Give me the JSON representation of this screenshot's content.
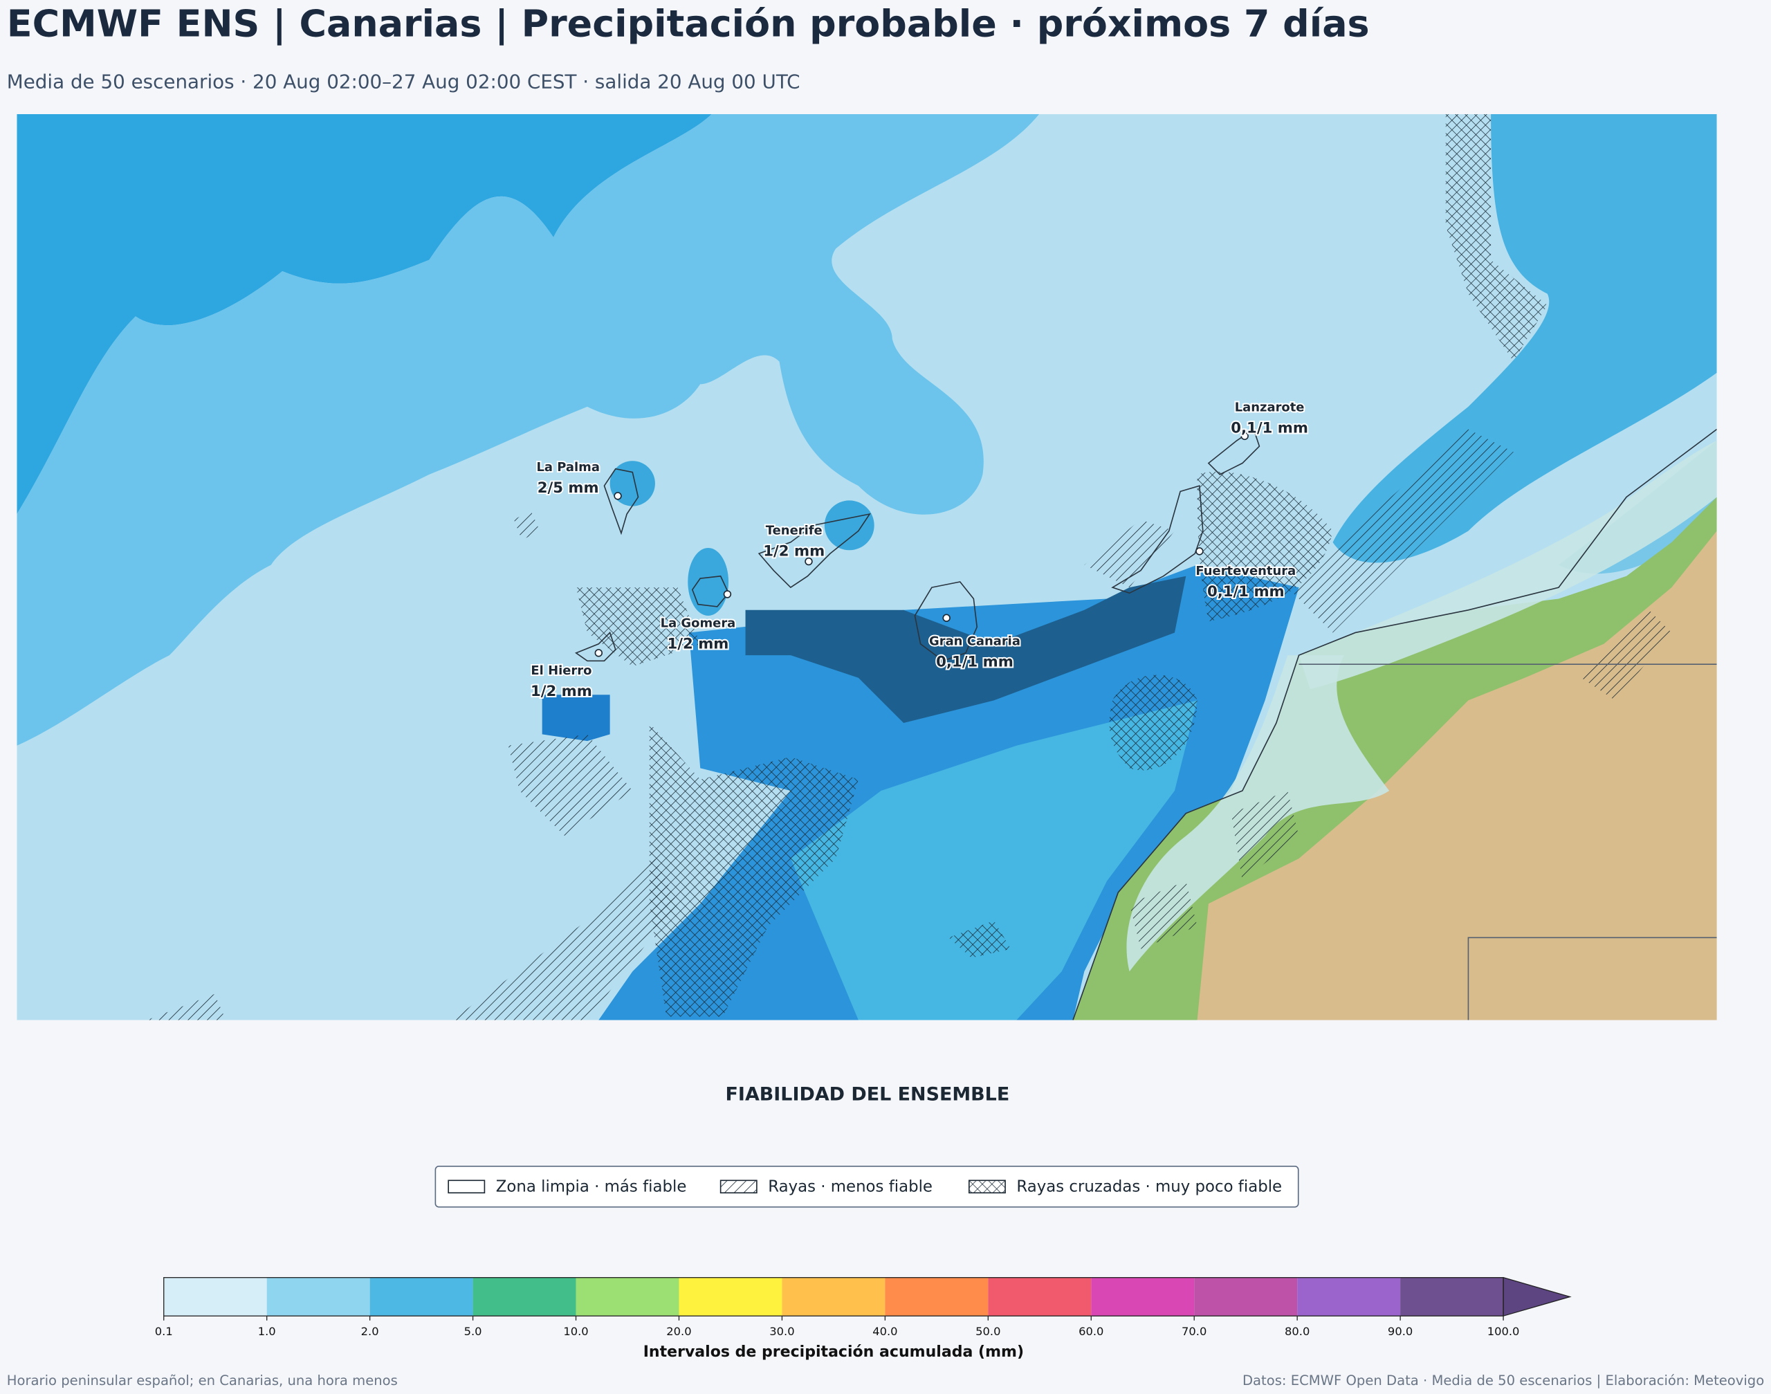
{
  "header": {
    "title": "ECMWF ENS | Canarias | Precipitación probable · próximos 7 días",
    "subtitle": "Media de 50 escenarios · 20 Aug 02:00–27 Aug 02:00 CEST · salida 20 Aug 00 UTC"
  },
  "map": {
    "labels": [
      {
        "name": "La Palma",
        "value": "2/5 mm"
      },
      {
        "name": "Tenerife",
        "value": "1/2 mm"
      },
      {
        "name": "La Gomera",
        "value": "1/2 mm"
      },
      {
        "name": "El Hierro",
        "value": "1/2 mm"
      },
      {
        "name": "Gran Canaria",
        "value": "0,1/1 mm"
      },
      {
        "name": "Lanzarote",
        "value": "0,1/1 mm"
      },
      {
        "name": "Fuerteventura",
        "value": "0,1/1 mm"
      }
    ]
  },
  "reliability_legend": {
    "title": "FIABILIDAD DEL ENSEMBLE",
    "items": [
      "Zona limpia · más fiable",
      "Rayas · menos fiable",
      "Rayas cruzadas · muy poco fiable"
    ]
  },
  "colorbar": {
    "ticks": [
      "0.1",
      "1.0",
      "2.0",
      "5.0",
      "10.0",
      "20.0",
      "30.0",
      "40.0",
      "50.0",
      "60.0",
      "70.0",
      "80.0",
      "90.0",
      "100.0"
    ],
    "colors": [
      "#d6eef7",
      "#8fd5ef",
      "#4db8e3",
      "#42be8a",
      "#9ce073",
      "#fff23f",
      "#ffc04c",
      "#ff8c4a",
      "#f05a6c",
      "#d947b4",
      "#bd52a8",
      "#9a64cc",
      "#6e4f8f"
    ],
    "extend_color": "#5c4580",
    "title": "Intervalos de precipitación acumulada (mm)"
  },
  "footer": {
    "left": "Horario peninsular español; en Canarias, una hora menos",
    "right": "Datos: ECMWF Open Data · Media de 50 escenarios | Elaboración: Meteovigo"
  }
}
